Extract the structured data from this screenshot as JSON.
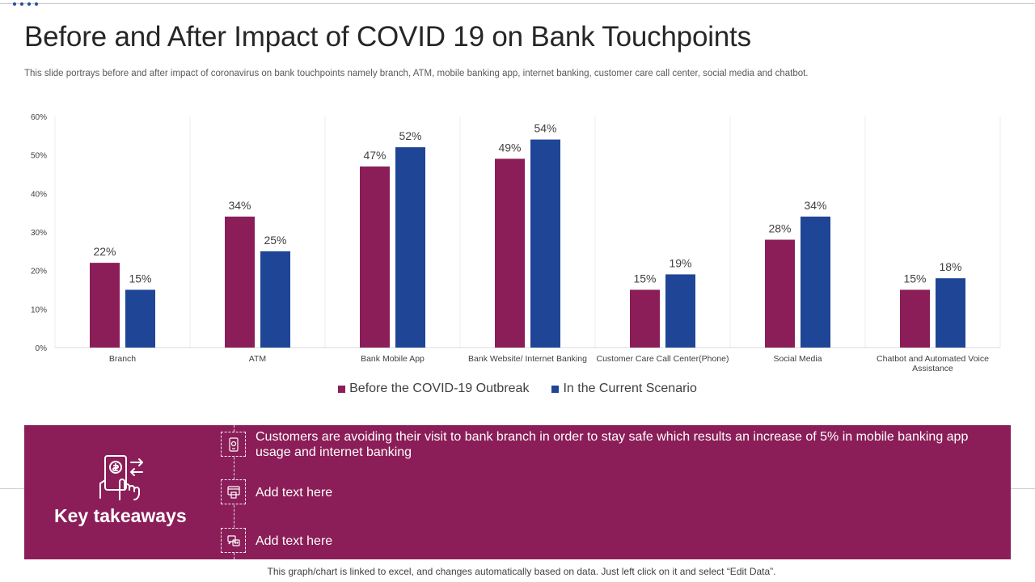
{
  "header": {
    "title": "Before and After Impact of COVID 19 on Bank Touchpoints",
    "subtitle": "This slide portrays before and after impact of coronavirus on bank touchpoints namely branch, ATM, mobile banking app, internet banking, customer care call center, social media and chatbot."
  },
  "chart_data": {
    "type": "bar",
    "categories": [
      "Branch",
      "ATM",
      "Bank Mobile App",
      "Bank Website/ Internet Banking",
      "Customer Care Call Center(Phone)",
      "Social Media",
      "Chatbot and Automated Voice Assistance"
    ],
    "series": [
      {
        "name": "Before the COVID-19 Outbreak",
        "values": [
          22,
          34,
          47,
          49,
          15,
          28,
          15
        ],
        "color": "#8b1e58"
      },
      {
        "name": "In the Current Scenario",
        "values": [
          15,
          25,
          52,
          54,
          19,
          34,
          18
        ],
        "color": "#1f4596"
      }
    ],
    "yticks": [
      "0%",
      "10%",
      "20%",
      "30%",
      "40%",
      "50%",
      "60%"
    ],
    "ylim": [
      0,
      60
    ],
    "unit": "%",
    "grid": "vertical separators",
    "legend": "bottom"
  },
  "takeaways": {
    "title": "Key takeaways",
    "items": [
      {
        "text": "Customers are avoiding their visit to bank branch in order to stay safe which results an increase of 5% in mobile banking app usage and internet banking",
        "icon": "mobile-app-icon"
      },
      {
        "text": "Add text here",
        "icon": "atm-card-icon"
      },
      {
        "text": "Add text here",
        "icon": "chatbot-icon"
      }
    ],
    "icon": "hand-payment-icon"
  },
  "footer": {
    "note": "This graph/chart is linked to excel, and changes automatically based on data. Just left click on it and select “Edit Data”."
  },
  "colors": {
    "accent": "#8b1e58",
    "secondary": "#1f4596"
  }
}
